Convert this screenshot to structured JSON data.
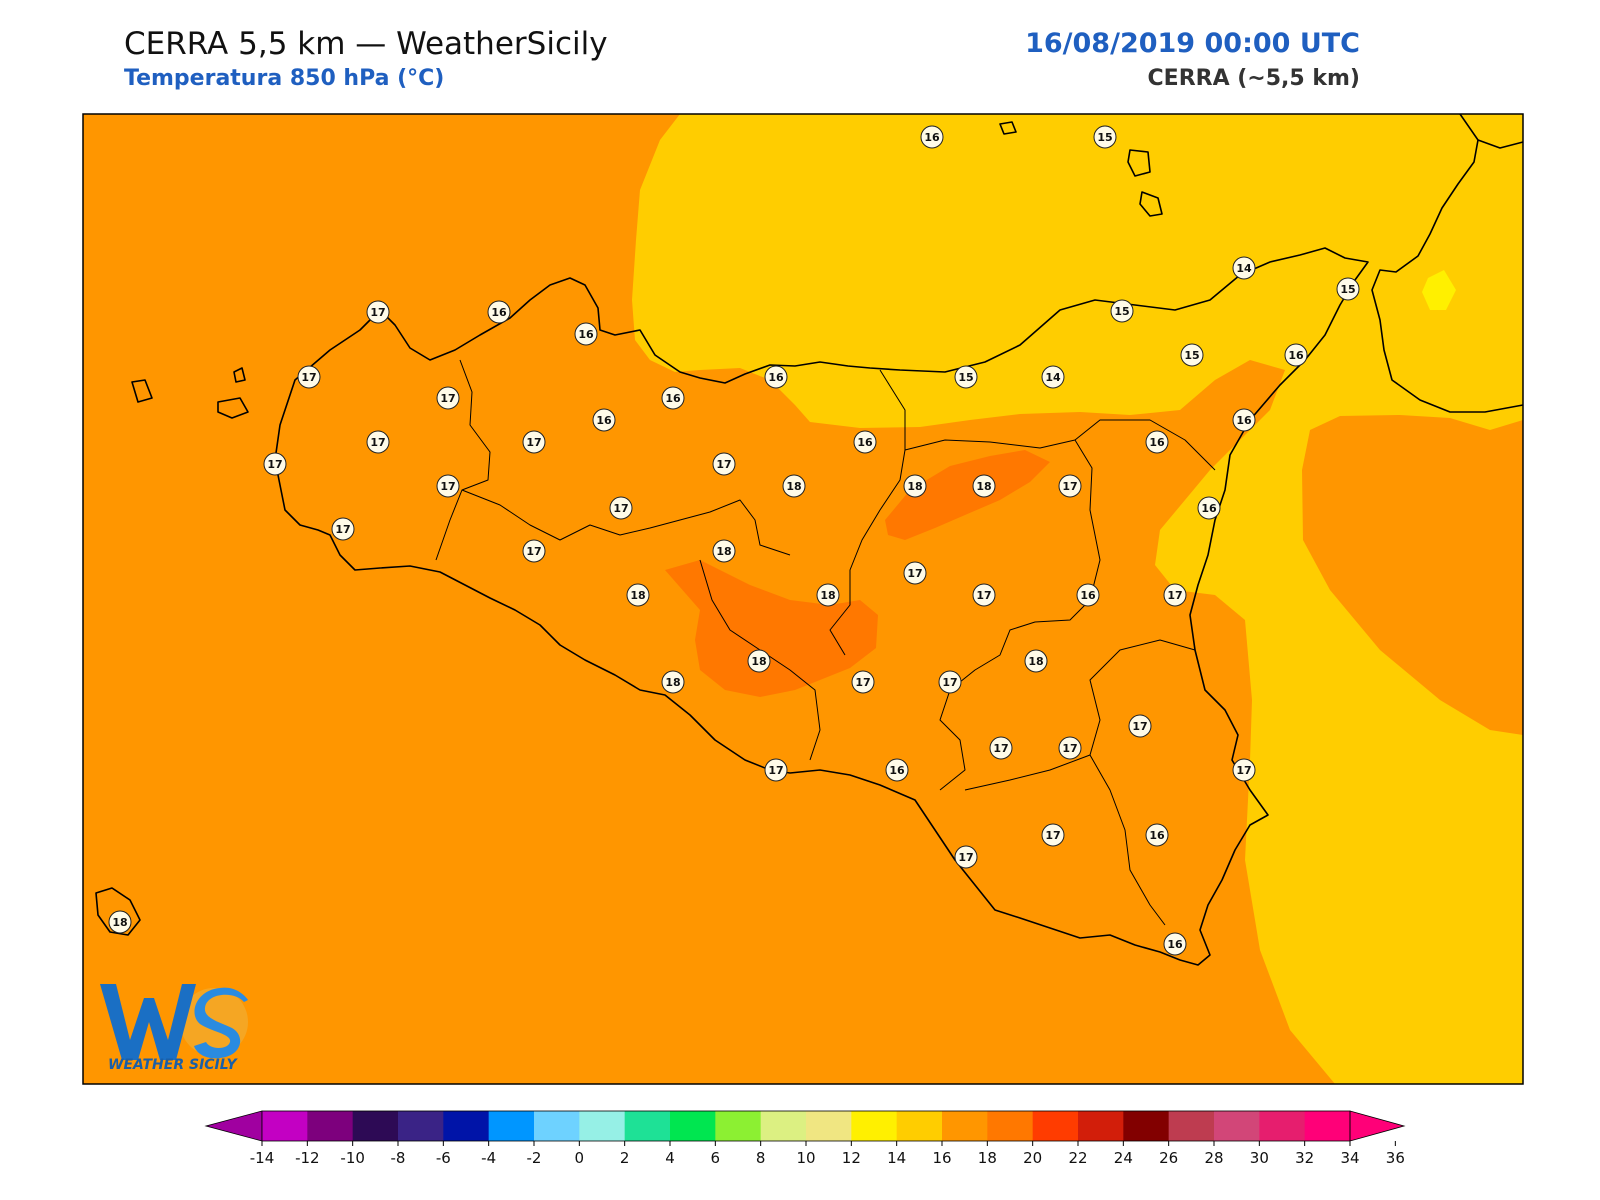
{
  "header": {
    "title": "CERRA 5,5 km — WeatherSicily",
    "subtitle": "Temperatura 850 hPa (°C)",
    "datetime": "16/08/2019 00:00 UTC",
    "model": "CERRA (~5,5 km)"
  },
  "logo": {
    "text": "WEATHER SICILY",
    "letters": "WS"
  },
  "colorbar": {
    "ticks": [
      "-14",
      "-12",
      "-10",
      "-8",
      "-6",
      "-4",
      "-2",
      "0",
      "2",
      "4",
      "6",
      "8",
      "10",
      "12",
      "14",
      "16",
      "18",
      "20",
      "22",
      "24",
      "26",
      "28",
      "30",
      "32",
      "34",
      "36"
    ],
    "colors": [
      "#c300c3",
      "#7d007d",
      "#2d0a55",
      "#3a2386",
      "#0014a8",
      "#0096ff",
      "#6ed2ff",
      "#96f0e6",
      "#1ee196",
      "#00e650",
      "#8cf032",
      "#dcf082",
      "#f0e682",
      "#fff000",
      "#ffcd00",
      "#ff9600",
      "#ff7800",
      "#ff3c00",
      "#d21e0a",
      "#820000",
      "#be3c50",
      "#d24678",
      "#e61e6e",
      "#ff0078"
    ],
    "under_color": "#a000a0",
    "over_color": "#ff0078"
  },
  "field_colors": {
    "t14": "#fff000",
    "t16": "#ffcd00",
    "t18": "#ff9600",
    "t20": "#ff7800"
  },
  "stations": [
    {
      "v": "16"
    },
    {
      "v": "15"
    },
    {
      "v": "14"
    },
    {
      "v": "15"
    },
    {
      "v": "17"
    },
    {
      "v": "16"
    },
    {
      "v": "16"
    },
    {
      "v": "17"
    },
    {
      "v": "17"
    },
    {
      "v": "16"
    },
    {
      "v": "16"
    },
    {
      "v": "15"
    },
    {
      "v": "14"
    },
    {
      "v": "15"
    },
    {
      "v": "15"
    },
    {
      "v": "16"
    },
    {
      "v": "17"
    },
    {
      "v": "17"
    },
    {
      "v": "17"
    },
    {
      "v": "16"
    },
    {
      "v": "16"
    },
    {
      "v": "16"
    },
    {
      "v": "16"
    },
    {
      "v": "17"
    },
    {
      "v": "17"
    },
    {
      "v": "18"
    },
    {
      "v": "18"
    },
    {
      "v": "18"
    },
    {
      "v": "17"
    },
    {
      "v": "16"
    },
    {
      "v": "17"
    },
    {
      "v": "17"
    },
    {
      "v": "17"
    },
    {
      "v": "18"
    },
    {
      "v": "18"
    },
    {
      "v": "18"
    },
    {
      "v": "17"
    },
    {
      "v": "17"
    },
    {
      "v": "16"
    },
    {
      "v": "17"
    },
    {
      "v": "18"
    },
    {
      "v": "18"
    },
    {
      "v": "18"
    },
    {
      "v": "17"
    },
    {
      "v": "17"
    },
    {
      "v": "17"
    },
    {
      "v": "17"
    },
    {
      "v": "17"
    },
    {
      "v": "17"
    },
    {
      "v": "16"
    },
    {
      "v": "17"
    },
    {
      "v": "17"
    },
    {
      "v": "16"
    },
    {
      "v": "17"
    },
    {
      "v": "16"
    },
    {
      "v": "18"
    }
  ]
}
